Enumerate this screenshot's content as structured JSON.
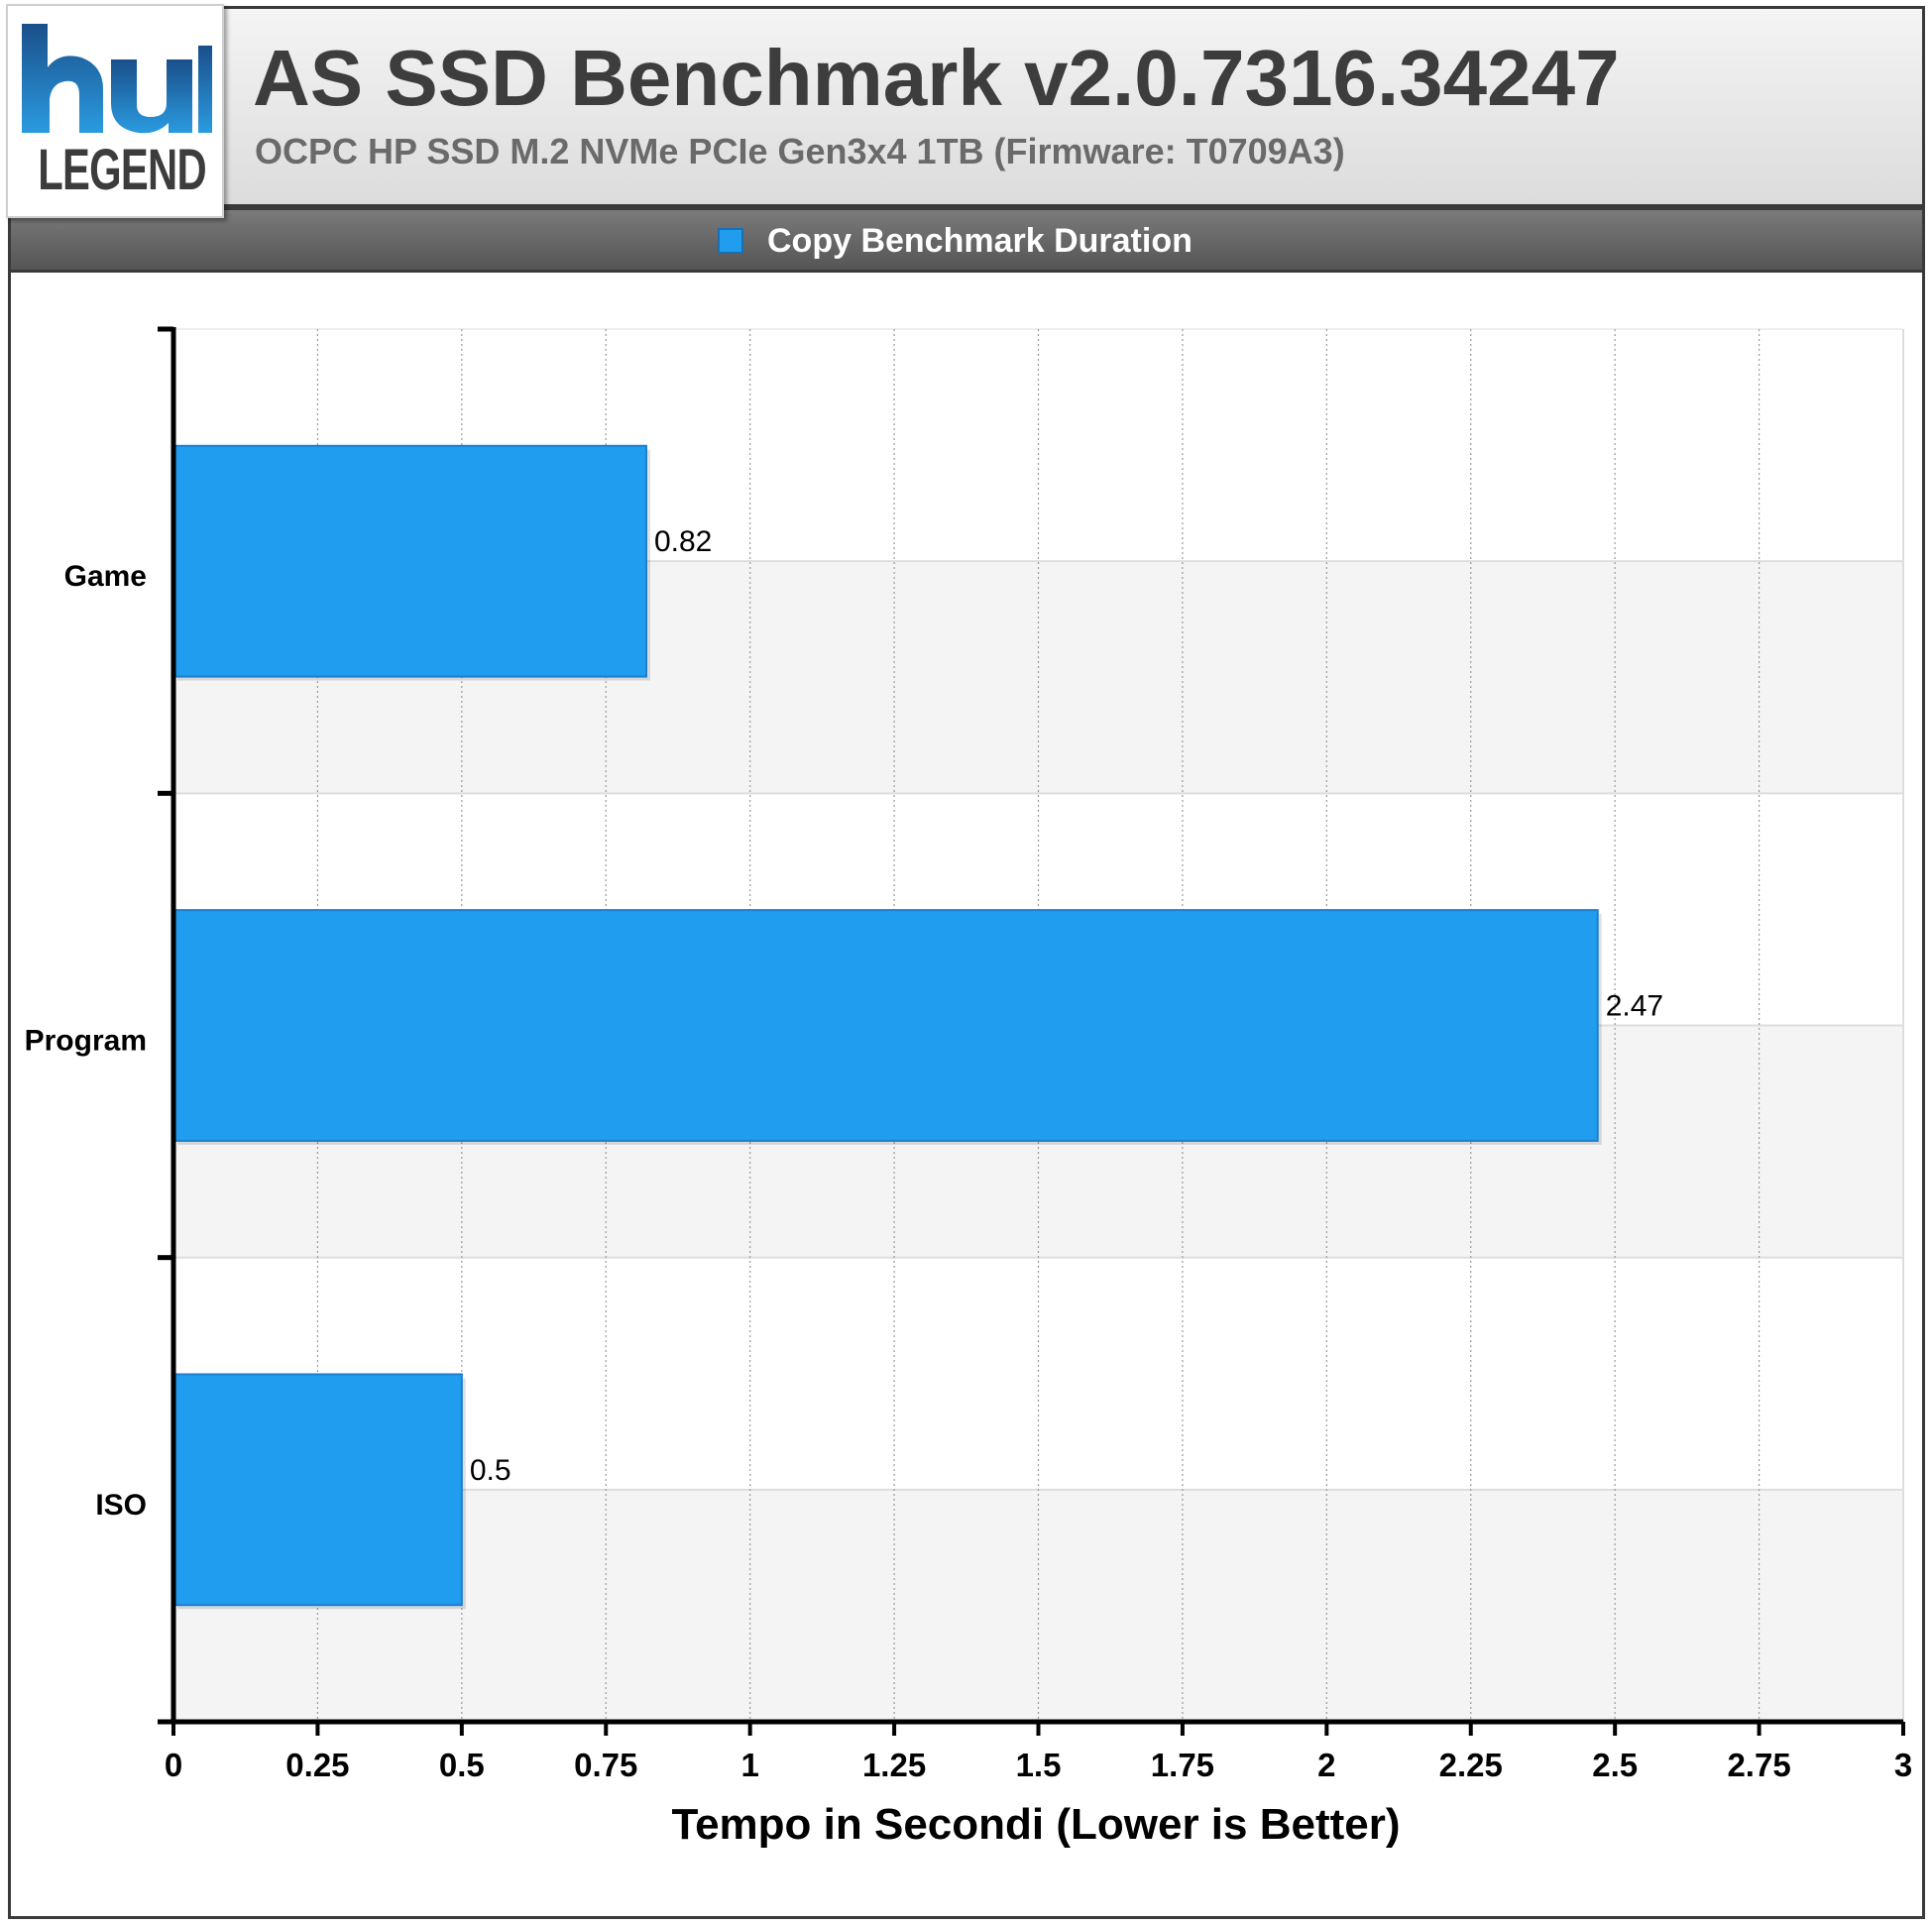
{
  "header": {
    "logo_text": "LEGEND",
    "title": "AS SSD Benchmark v2.0.7316.34247",
    "subtitle": "OCPC HP SSD M.2 NVMe PCIe Gen3x4 1TB (Firmware: T0709A3)"
  },
  "colors": {
    "bar": "#219df0",
    "bar_border": "#1a7fd0",
    "logo_blue": "#1f7fd0"
  },
  "chart_data": {
    "type": "bar",
    "orientation": "horizontal",
    "categories": [
      "Game",
      "Program",
      "ISO"
    ],
    "series": [
      {
        "name": "Copy Benchmark Duration",
        "values": [
          0.82,
          2.47,
          0.5
        ]
      }
    ],
    "data_labels": [
      "0.82",
      "2.47",
      "0.5"
    ],
    "x_ticks": [
      "0",
      "0.25",
      "0.5",
      "0.75",
      "1",
      "1.25",
      "1.5",
      "1.75",
      "2",
      "2.25",
      "2.5",
      "2.75",
      "3"
    ],
    "xlim": [
      0,
      3
    ],
    "xlabel": "Tempo in Secondi (Lower is Better)",
    "ylabel": "",
    "grid": true,
    "legend_position": "top-center"
  }
}
